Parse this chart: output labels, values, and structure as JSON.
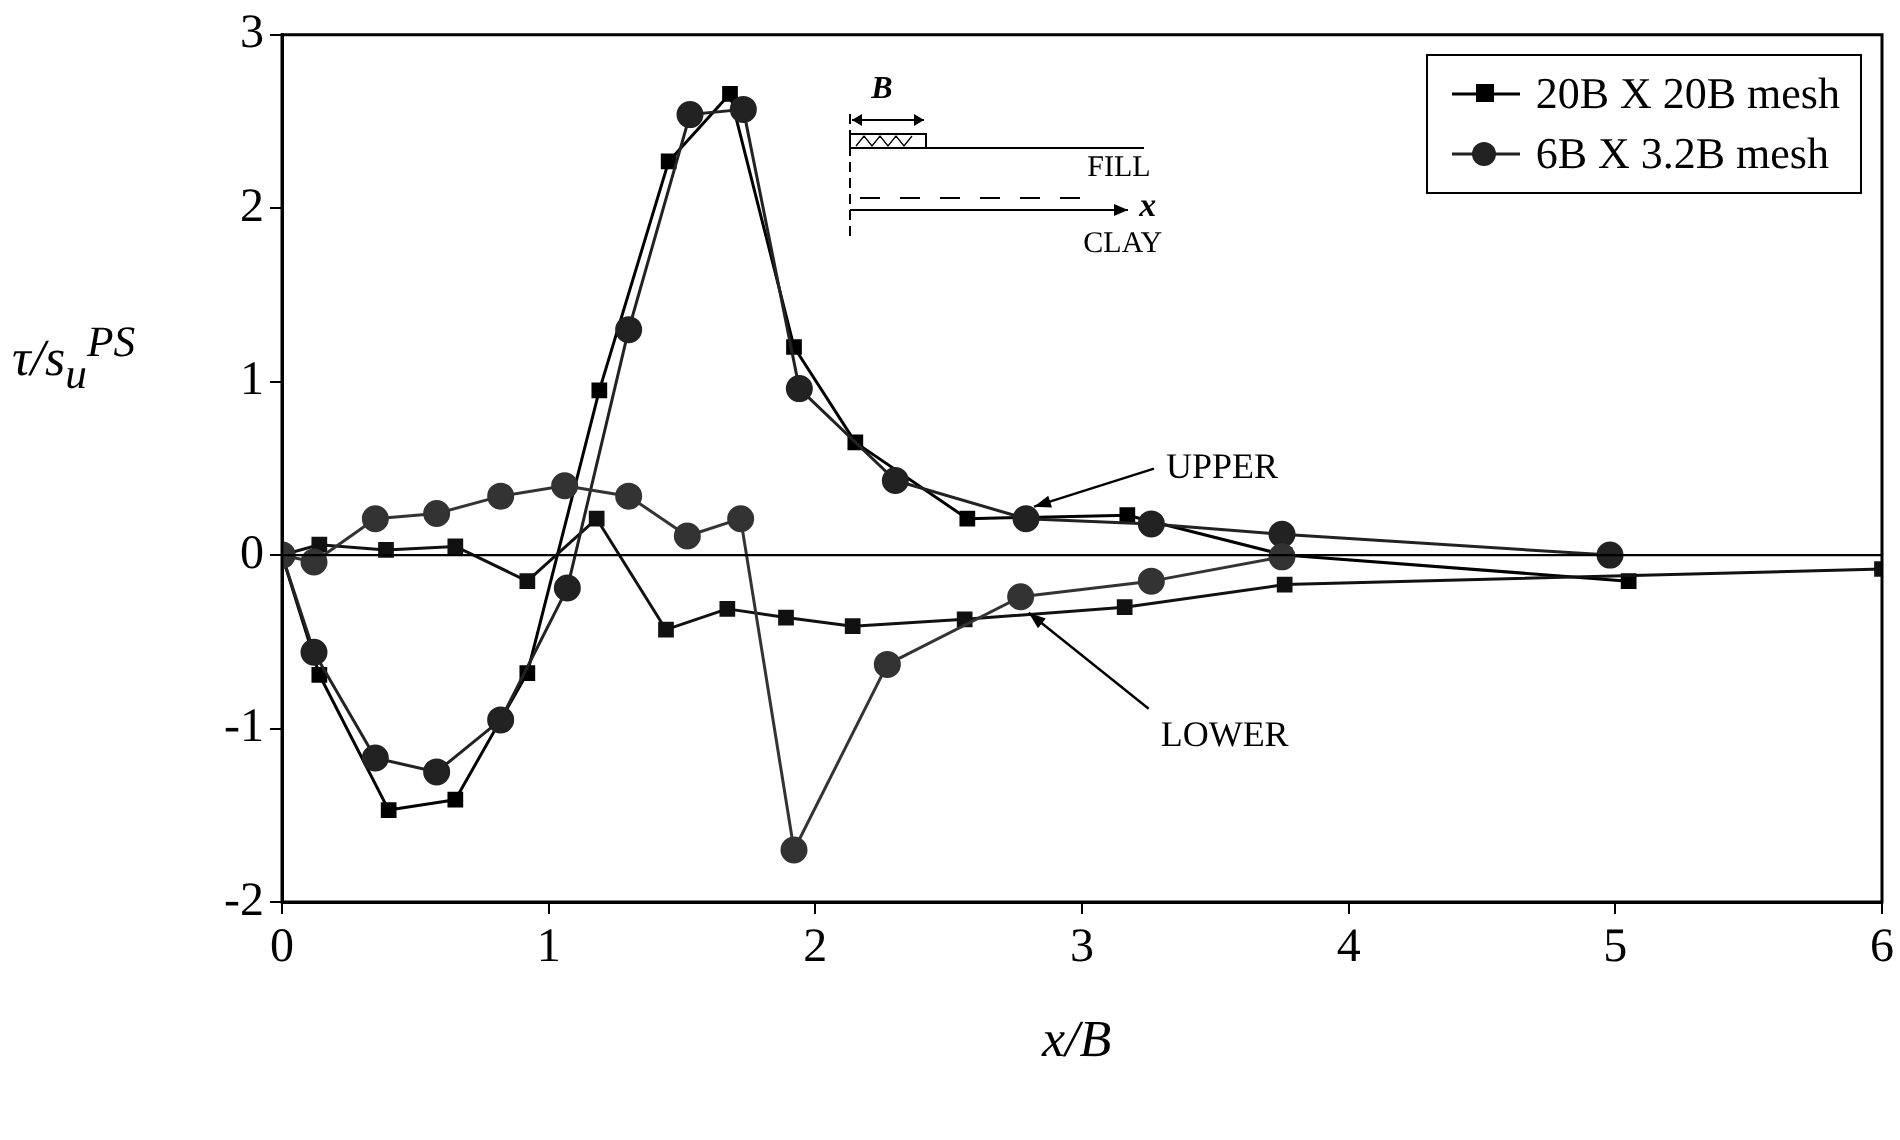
{
  "chart_data": {
    "type": "line",
    "xlabel": "x/B",
    "ylabel": "τ/s$_{u}$$^{PS}$",
    "xlim": [
      0,
      6
    ],
    "xticks": [
      0,
      1,
      2,
      3,
      4,
      5,
      6
    ],
    "ylim": [
      -2,
      3
    ],
    "yticks": [
      -2,
      -1,
      0,
      1,
      2,
      3
    ],
    "grid": false,
    "legend": "top right",
    "line_style": "solid",
    "ref_lines": [
      {
        "axis": "y",
        "value": 0,
        "color": "#000000"
      }
    ],
    "annotations": [
      {
        "text": "UPPER",
        "x": 2.79,
        "y": 0.21
      },
      {
        "text": "LOWER",
        "x": 2.77,
        "y": -0.24
      },
      "B",
      "FILL",
      "x",
      "CLAY"
    ],
    "series": [
      {
        "name": "20B X 20B mesh",
        "color": "#000000",
        "marker": "square",
        "x": [
          0,
          0.14,
          0.4,
          0.65,
          0.92,
          1.19,
          1.45,
          1.68,
          1.92,
          2.15,
          2.57,
          3.17,
          3.76,
          5.05
        ],
        "values": [
          0,
          -0.69,
          -1.47,
          -1.41,
          -0.68,
          0.95,
          2.27,
          2.66,
          1.2,
          0.65,
          0.21,
          0.23,
          0.0,
          -0.15
        ]
      },
      {
        "color": "#111111",
        "marker": "square",
        "x": [
          0,
          0.14,
          0.39,
          0.65,
          0.92,
          1.18,
          1.44,
          1.67,
          1.89,
          2.14,
          2.56,
          3.16,
          3.76,
          6
        ],
        "values": [
          0,
          0.06,
          0.03,
          0.05,
          -0.15,
          0.21,
          -0.43,
          -0.31,
          -0.36,
          -0.41,
          -0.37,
          -0.3,
          -0.17,
          -0.08
        ]
      },
      {
        "name": "6B X 3.2B mesh",
        "color": "#222222",
        "marker": "circle",
        "x": [
          0,
          0.12,
          0.35,
          0.58,
          0.82,
          1.07,
          1.3,
          1.53,
          1.73,
          1.94,
          2.3,
          2.79,
          3.26,
          3.75,
          4.98
        ],
        "values": [
          0,
          -0.56,
          -1.17,
          -1.25,
          -0.95,
          -0.19,
          1.3,
          2.54,
          2.57,
          0.96,
          0.43,
          0.21,
          0.18,
          0.12,
          0
        ]
      },
      {
        "color": "#333333",
        "marker": "circle",
        "x": [
          0,
          0.12,
          0.35,
          0.58,
          0.82,
          1.06,
          1.3,
          1.52,
          1.72,
          1.92,
          2.27,
          2.77,
          3.26,
          3.75
        ],
        "values": [
          0,
          -0.04,
          0.21,
          0.24,
          0.34,
          0.4,
          0.34,
          0.11,
          0.21,
          -1.7,
          -0.63,
          -0.24,
          -0.15,
          -0.01
        ]
      }
    ]
  }
}
